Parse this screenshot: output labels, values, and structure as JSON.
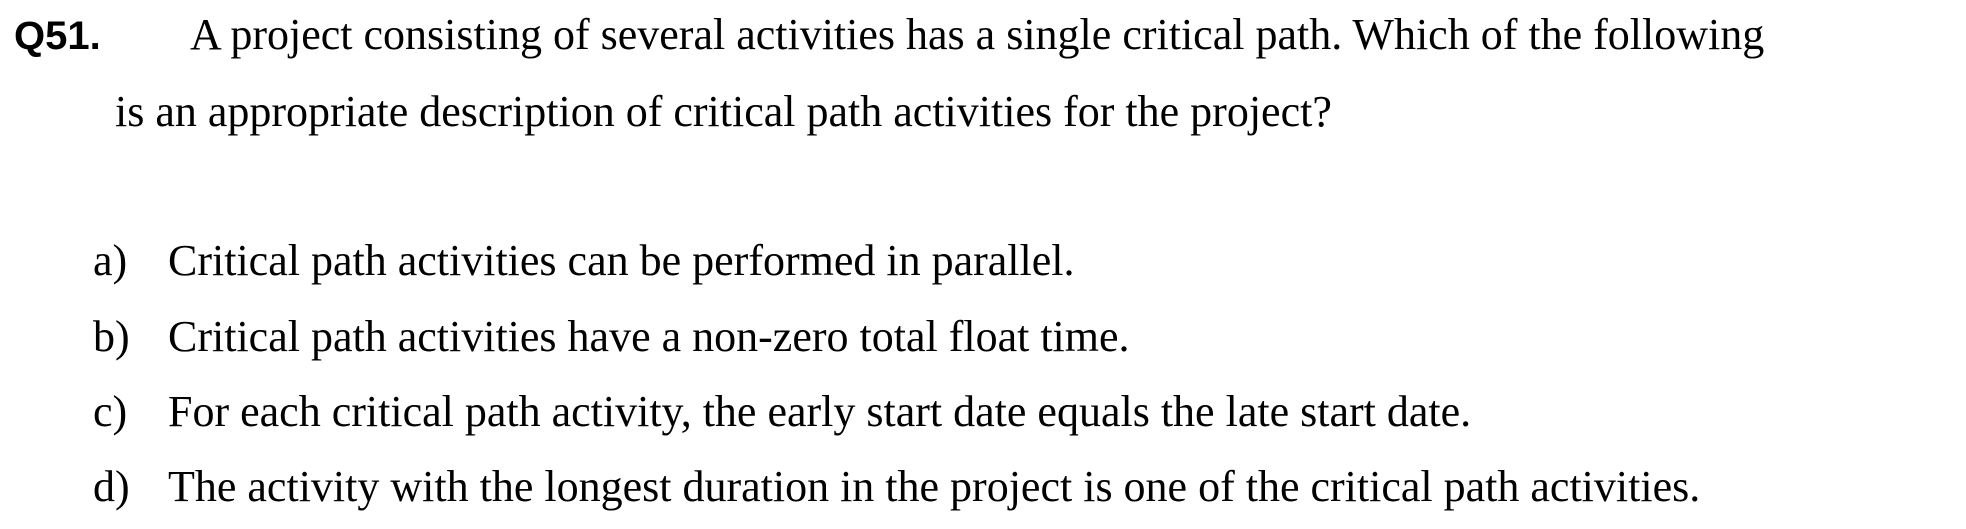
{
  "question": {
    "number": "Q51.",
    "text_line1": "A project consisting of several activities has a single critical path. Which of the following",
    "text_line2": "is an appropriate description of critical path activities for the project?"
  },
  "options": [
    {
      "letter": "a)",
      "text": "Critical path activities can be performed in parallel."
    },
    {
      "letter": "b)",
      "text": "Critical path activities have a non-zero total float time."
    },
    {
      "letter": "c)",
      "text": "For each critical path activity, the early start date equals the late start date."
    },
    {
      "letter": "d)",
      "text": "The activity with the longest duration in the project is one of the critical path activities."
    }
  ]
}
